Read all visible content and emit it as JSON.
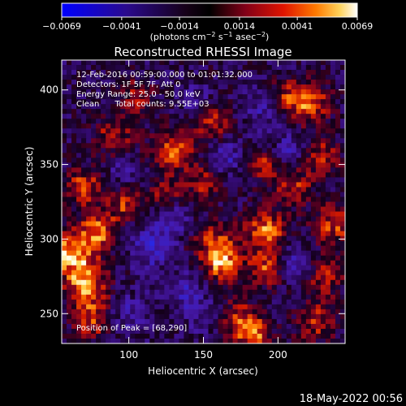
{
  "colorbar": {
    "tick_labels": [
      "−0.0069",
      "−0.0041",
      "−0.0014",
      "0.0014",
      "0.0041",
      "0.0069"
    ],
    "tick_values": [
      -0.0069,
      -0.0041,
      -0.0014,
      0.0014,
      0.0041,
      0.0069
    ],
    "range": [
      -0.0069,
      0.0069
    ],
    "units": {
      "base": "(photons cm",
      "e1": "−2",
      "mid1": " s",
      "e2": "−1",
      "mid2": " asec",
      "e3": "−2",
      "end": ")"
    }
  },
  "chart_data": {
    "type": "heatmap",
    "title": "Reconstructed RHESSI Image",
    "xlabel": "Heliocentric X (arcsec)",
    "ylabel": "Heliocentric Y (arcsec)",
    "xlim": [
      55,
      245
    ],
    "ylim": [
      230,
      420
    ],
    "xticks": [
      100,
      150,
      200
    ],
    "yticks": [
      250,
      300,
      350,
      400
    ],
    "annotations": [
      "12-Feb-2016 00:59:00.000 to 01:01:32.000",
      "Detectors: 1F 5F 7F, Att 0",
      "Energy Range: 25.0 - 50.0 keV",
      "Clean      Total counts: 9.55E+03"
    ],
    "peak_label": "Position of Peak = [68,290]",
    "peak_position": [
      68,
      290
    ],
    "blobs": [
      {
        "x": 62,
        "y": 290,
        "r": 11,
        "v": 1.0
      },
      {
        "x": 72,
        "y": 268,
        "r": 10,
        "v": 0.85
      },
      {
        "x": 80,
        "y": 306,
        "r": 9,
        "v": 0.8
      },
      {
        "x": 70,
        "y": 335,
        "r": 9,
        "v": 0.7
      },
      {
        "x": 75,
        "y": 245,
        "r": 9,
        "v": 0.65
      },
      {
        "x": 90,
        "y": 370,
        "r": 10,
        "v": 0.55
      },
      {
        "x": 105,
        "y": 395,
        "r": 9,
        "v": 0.5
      },
      {
        "x": 98,
        "y": 324,
        "r": 8,
        "v": 0.65
      },
      {
        "x": 130,
        "y": 360,
        "r": 10,
        "v": 0.75
      },
      {
        "x": 155,
        "y": 378,
        "r": 9,
        "v": 0.6
      },
      {
        "x": 150,
        "y": 338,
        "r": 8,
        "v": 0.55
      },
      {
        "x": 125,
        "y": 330,
        "r": 8,
        "v": 0.5
      },
      {
        "x": 158,
        "y": 298,
        "r": 10,
        "v": 0.6
      },
      {
        "x": 163,
        "y": 283,
        "r": 9,
        "v": 0.85
      },
      {
        "x": 192,
        "y": 305,
        "r": 10,
        "v": 0.85
      },
      {
        "x": 192,
        "y": 280,
        "r": 8,
        "v": 0.7
      },
      {
        "x": 210,
        "y": 335,
        "r": 9,
        "v": 0.6
      },
      {
        "x": 190,
        "y": 350,
        "r": 8,
        "v": 0.55
      },
      {
        "x": 222,
        "y": 390,
        "r": 10,
        "v": 0.75
      },
      {
        "x": 230,
        "y": 355,
        "r": 9,
        "v": 0.6
      },
      {
        "x": 238,
        "y": 310,
        "r": 10,
        "v": 0.7
      },
      {
        "x": 232,
        "y": 275,
        "r": 9,
        "v": 0.55
      },
      {
        "x": 225,
        "y": 245,
        "r": 10,
        "v": 0.6
      },
      {
        "x": 175,
        "y": 245,
        "r": 10,
        "v": 0.65
      },
      {
        "x": 185,
        "y": 235,
        "r": 8,
        "v": 0.6
      },
      {
        "x": 205,
        "y": 395,
        "r": 8,
        "v": 0.55
      },
      {
        "x": 115,
        "y": 295,
        "r": 10,
        "v": -0.55
      },
      {
        "x": 138,
        "y": 265,
        "r": 9,
        "v": -0.45
      },
      {
        "x": 130,
        "y": 315,
        "r": 8,
        "v": -0.4
      },
      {
        "x": 165,
        "y": 355,
        "r": 8,
        "v": -0.45
      },
      {
        "x": 145,
        "y": 392,
        "r": 8,
        "v": -0.35
      },
      {
        "x": 190,
        "y": 387,
        "r": 9,
        "v": -0.35
      },
      {
        "x": 208,
        "y": 360,
        "r": 8,
        "v": -0.4
      },
      {
        "x": 100,
        "y": 250,
        "r": 9,
        "v": -0.35
      },
      {
        "x": 210,
        "y": 285,
        "r": 8,
        "v": -0.4
      },
      {
        "x": 150,
        "y": 248,
        "r": 8,
        "v": -0.3
      },
      {
        "x": 95,
        "y": 345,
        "r": 7,
        "v": -0.3
      }
    ]
  },
  "footer": {
    "timestamp": "18-May-2022 00:56"
  }
}
